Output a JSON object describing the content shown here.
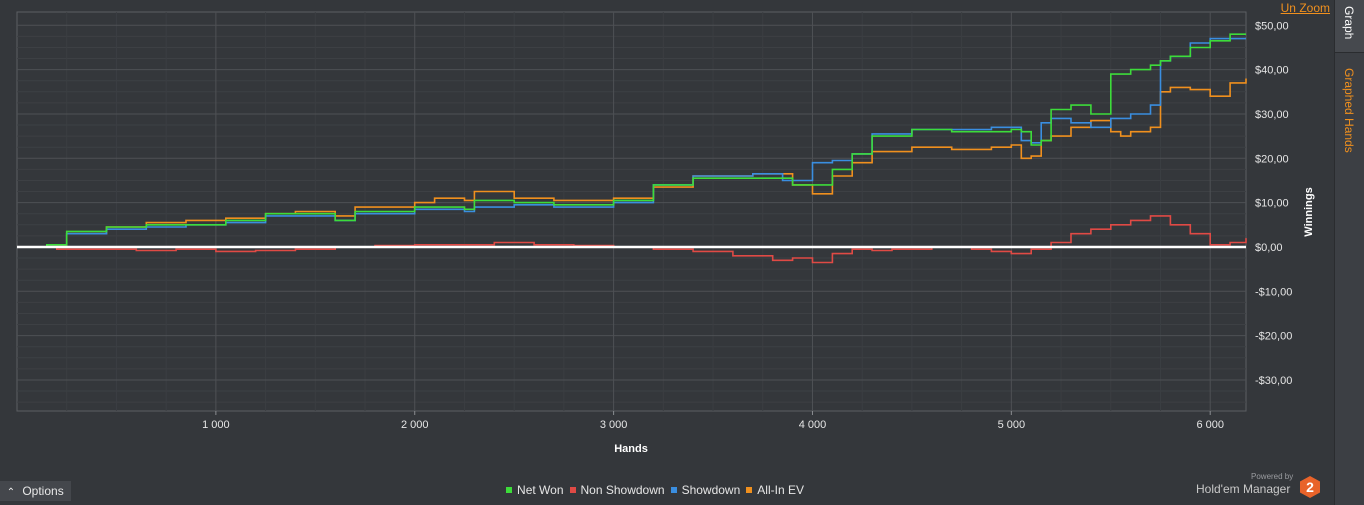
{
  "header": {
    "unzoom_label": "Un Zoom"
  },
  "side_tabs": [
    {
      "label": "Graph"
    },
    {
      "label": "Graphed Hands"
    }
  ],
  "options": {
    "label": "Options"
  },
  "branding": {
    "powered_by": "Powered by",
    "product": "Hold'em Manager",
    "version": "2"
  },
  "colors": {
    "background": "#34373b",
    "net_won": "#3ddc3a",
    "non_showdown": "#e04a45",
    "showdown": "#3a8ee0",
    "all_in_ev": "#f0901e",
    "zero_line": "#ffffff"
  },
  "chart_data": {
    "type": "line",
    "title": "",
    "xlabel": "Hands",
    "ylabel": "Winnings",
    "xlim": [
      0,
      6180
    ],
    "ylim": [
      -37,
      53
    ],
    "x_ticks": [
      1000,
      2000,
      3000,
      4000,
      5000,
      6000
    ],
    "x_tick_labels": [
      "1 000",
      "2 000",
      "3 000",
      "4 000",
      "5 000",
      "6 000"
    ],
    "y_ticks": [
      50,
      40,
      30,
      20,
      10,
      0,
      -10,
      -20,
      -30
    ],
    "y_tick_labels": [
      "$50,00",
      "$40,00",
      "$30,00",
      "$20,00",
      "$10,00",
      "$0,00",
      "-$10,00",
      "-$20,00",
      "-$30,00"
    ],
    "y_axis_side": "right",
    "grid": true,
    "legend_position": "bottom",
    "series": [
      {
        "name": "Net Won",
        "color": "#3ddc3a",
        "x": [
          0,
          150,
          250,
          450,
          650,
          850,
          1050,
          1250,
          1400,
          1600,
          1700,
          1800,
          2000,
          2250,
          2300,
          2500,
          2700,
          3000,
          3200,
          3400,
          3700,
          3900,
          4100,
          4200,
          4300,
          4500,
          4700,
          4900,
          5000,
          5050,
          5100,
          5150,
          5200,
          5300,
          5400,
          5500,
          5600,
          5700,
          5750,
          5800,
          5900,
          6000,
          6100,
          6180
        ],
        "y": [
          0,
          0.5,
          3.5,
          4.5,
          5,
          5,
          6,
          7.5,
          7.5,
          6,
          8,
          8,
          9,
          8.5,
          10.5,
          10,
          9.5,
          10.5,
          14,
          15.5,
          15.5,
          14,
          17.5,
          21,
          25,
          26.5,
          26,
          26,
          26.5,
          26,
          23,
          24,
          31,
          32,
          30,
          39,
          40,
          41,
          42,
          43,
          45,
          46.5,
          48,
          48
        ]
      },
      {
        "name": "Non Showdown",
        "color": "#e04a45",
        "x": [
          0,
          200,
          400,
          600,
          800,
          1000,
          1200,
          1400,
          1600,
          1800,
          2000,
          2200,
          2400,
          2600,
          2800,
          3000,
          3200,
          3400,
          3600,
          3800,
          3900,
          4000,
          4100,
          4200,
          4300,
          4400,
          4600,
          4800,
          4900,
          5000,
          5100,
          5200,
          5300,
          5400,
          5500,
          5600,
          5700,
          5800,
          5900,
          6000,
          6100,
          6180
        ],
        "y": [
          0,
          -0.5,
          -0.5,
          -0.8,
          -0.5,
          -1,
          -0.8,
          -0.5,
          0,
          0.3,
          0.5,
          0.5,
          1,
          0.5,
          0.3,
          0,
          -0.5,
          -1,
          -2,
          -3,
          -2.5,
          -3.5,
          -1.5,
          -0.5,
          -0.8,
          -0.5,
          0,
          -0.5,
          -1,
          -1.5,
          -0.5,
          1,
          3,
          4,
          5,
          6,
          7,
          5,
          3,
          0.5,
          1,
          2
        ]
      },
      {
        "name": "Showdown",
        "color": "#3a8ee0",
        "x": [
          0,
          150,
          250,
          450,
          650,
          850,
          1050,
          1250,
          1400,
          1600,
          1700,
          1800,
          2000,
          2250,
          2300,
          2500,
          2700,
          3000,
          3200,
          3400,
          3700,
          3850,
          4000,
          4100,
          4200,
          4300,
          4500,
          4700,
          4900,
          5000,
          5050,
          5100,
          5150,
          5200,
          5300,
          5400,
          5500,
          5600,
          5700,
          5750,
          5800,
          5900,
          6000,
          6100,
          6180
        ],
        "y": [
          0,
          0.5,
          3,
          4,
          4.5,
          5,
          5.5,
          7,
          7,
          6,
          7.5,
          7.5,
          8.5,
          8,
          9,
          9.5,
          9,
          10,
          14,
          16,
          16.5,
          15,
          19,
          19.5,
          21,
          25.5,
          26.5,
          26.5,
          27,
          27,
          24,
          23.5,
          28,
          29,
          28,
          27,
          29,
          30,
          32,
          42,
          43,
          46,
          47,
          47,
          47
        ]
      },
      {
        "name": "All-In EV",
        "color": "#f0901e",
        "x": [
          0,
          150,
          250,
          450,
          650,
          850,
          1050,
          1250,
          1400,
          1600,
          1700,
          1800,
          2000,
          2100,
          2250,
          2300,
          2500,
          2700,
          3000,
          3200,
          3400,
          3700,
          3900,
          4000,
          4100,
          4200,
          4300,
          4500,
          4700,
          4900,
          5000,
          5050,
          5100,
          5150,
          5200,
          5300,
          5400,
          5500,
          5550,
          5600,
          5700,
          5750,
          5800,
          5900,
          6000,
          6100,
          6180
        ],
        "y": [
          0,
          0.5,
          3,
          4.5,
          5.5,
          6,
          6.5,
          7.5,
          8,
          7,
          9,
          9,
          10,
          11,
          10.5,
          12.5,
          11,
          10.5,
          11,
          13.5,
          16,
          16.5,
          14,
          12,
          16,
          19,
          21.5,
          22.5,
          22,
          22.5,
          23,
          20,
          20.5,
          24,
          25,
          27,
          28.5,
          26,
          25,
          26,
          27,
          35,
          36,
          35.5,
          34,
          37,
          38
        ]
      }
    ]
  }
}
